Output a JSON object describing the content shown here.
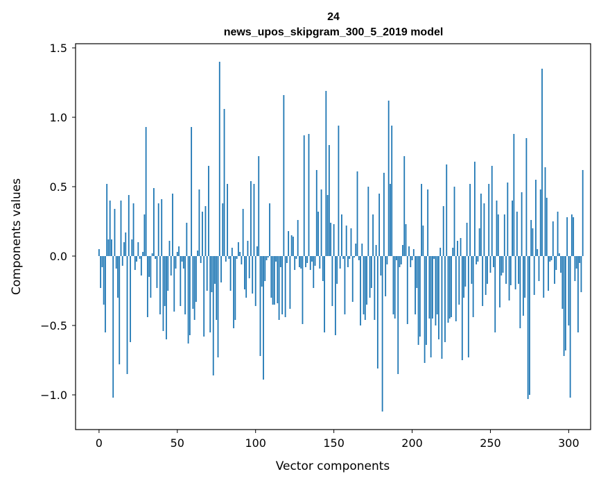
{
  "chart_data": {
    "type": "bar",
    "title_line1": "24",
    "title_line2": "news_upos_skipgram_300_5_2019 model",
    "xlabel": "Vector components",
    "ylabel": "Components values",
    "xlim": [
      -15,
      314
    ],
    "ylim": [
      -1.25,
      1.53
    ],
    "xticks": [
      0,
      50,
      100,
      150,
      200,
      250,
      300
    ],
    "yticks": [
      -1.0,
      -0.5,
      0.0,
      0.5,
      1.0,
      1.5
    ],
    "ytick_labels": [
      "−1.0",
      "−0.5",
      "0.0",
      "0.5",
      "1.0",
      "1.5"
    ],
    "bar_color": "#1f77b4",
    "grid": false,
    "values": [
      0.05,
      -0.23,
      -0.08,
      -0.35,
      -0.55,
      0.52,
      0.12,
      0.4,
      0.12,
      -1.02,
      0.34,
      -0.09,
      -0.3,
      -0.78,
      0.4,
      -0.07,
      0.1,
      0.17,
      -0.85,
      0.44,
      -0.62,
      0.12,
      0.38,
      -0.1,
      -0.04,
      0.1,
      -0.02,
      -0.14,
      0.03,
      0.3,
      0.93,
      -0.44,
      -0.15,
      -0.3,
      0.02,
      0.49,
      -0.02,
      -0.23,
      0.38,
      -0.42,
      0.41,
      -0.54,
      -0.36,
      -0.6,
      -0.25,
      0.11,
      -0.14,
      0.45,
      -0.4,
      -0.09,
      0.03,
      0.07,
      -0.36,
      -0.04,
      -0.09,
      -0.42,
      0.24,
      -0.63,
      -0.57,
      0.93,
      -0.38,
      -0.46,
      -0.33,
      0.04,
      0.48,
      -0.05,
      0.32,
      -0.58,
      0.36,
      -0.25,
      0.65,
      -0.55,
      -0.26,
      -0.86,
      -0.2,
      -0.46,
      -0.73,
      1.4,
      -0.19,
      0.38,
      1.06,
      -0.04,
      0.52,
      -0.02,
      -0.25,
      0.06,
      -0.52,
      -0.46,
      -0.02,
      0.1,
      0.03,
      -0.06,
      0.34,
      -0.24,
      -0.3,
      0.11,
      -0.16,
      0.54,
      -0.27,
      0.52,
      -0.36,
      0.07,
      0.72,
      -0.72,
      -0.22,
      -0.89,
      -0.18,
      -0.03,
      -0.01,
      0.38,
      -0.3,
      -0.35,
      -0.35,
      -0.04,
      -0.34,
      -0.46,
      -0.08,
      -0.42,
      1.16,
      -0.44,
      -0.05,
      0.18,
      -0.38,
      0.15,
      0.14,
      -0.1,
      -0.02,
      0.26,
      -0.08,
      -0.09,
      -0.49,
      0.87,
      -0.08,
      -0.05,
      0.88,
      -0.1,
      -0.04,
      -0.23,
      -0.07,
      0.62,
      0.32,
      -0.09,
      0.48,
      -0.18,
      -0.55,
      1.19,
      0.44,
      0.8,
      0.24,
      -0.36,
      0.23,
      -0.57,
      -0.2,
      0.94,
      -0.09,
      0.3,
      -0.02,
      -0.42,
      0.22,
      -0.08,
      -0.02,
      0.2,
      -0.33,
      -0.01,
      0.09,
      0.61,
      -0.03,
      -0.5,
      0.09,
      -0.42,
      -0.46,
      -0.35,
      0.5,
      -0.3,
      -0.23,
      0.3,
      -0.46,
      0.08,
      -0.81,
      0.45,
      -0.14,
      -1.12,
      0.6,
      -0.29,
      -0.06,
      1.12,
      0.52,
      0.94,
      -0.42,
      -0.45,
      -0.03,
      -0.85,
      -0.08,
      -0.06,
      0.08,
      0.72,
      0.23,
      -0.49,
      0.07,
      -0.08,
      -0.03,
      0.05,
      -0.42,
      -0.23,
      -0.64,
      -0.58,
      0.52,
      0.22,
      -0.77,
      -0.64,
      0.48,
      -0.45,
      -0.73,
      -0.45,
      -0.02,
      -0.5,
      -0.42,
      -0.6,
      0.06,
      -0.74,
      0.36,
      -0.62,
      0.66,
      -0.48,
      -0.45,
      -0.44,
      0.06,
      0.5,
      -0.47,
      0.11,
      -0.35,
      0.13,
      -0.75,
      -0.3,
      -0.22,
      0.24,
      -0.73,
      0.52,
      -0.2,
      -0.44,
      0.68,
      -0.06,
      -0.04,
      0.2,
      0.45,
      -0.36,
      0.38,
      -0.28,
      -0.2,
      0.52,
      -0.12,
      0.65,
      -0.08,
      -0.55,
      0.4,
      0.3,
      -0.37,
      -0.14,
      -0.12,
      0.3,
      -0.2,
      0.53,
      -0.32,
      -0.21,
      0.4,
      0.88,
      -0.24,
      0.32,
      -0.2,
      -0.52,
      0.46,
      -0.43,
      -0.3,
      0.85,
      -1.03,
      -1.0,
      0.26,
      0.2,
      -0.28,
      0.55,
      0.05,
      -0.18,
      0.48,
      1.35,
      -0.3,
      0.64,
      0.42,
      -0.25,
      -0.04,
      -0.03,
      0.25,
      -0.2,
      -0.1,
      0.32,
      0.02,
      -0.12,
      -0.38,
      -0.72,
      -0.68,
      0.28,
      -0.5,
      -1.02,
      0.3,
      0.28,
      -0.18,
      -0.09,
      -0.55,
      -0.05,
      -0.26,
      0.62
    ]
  }
}
